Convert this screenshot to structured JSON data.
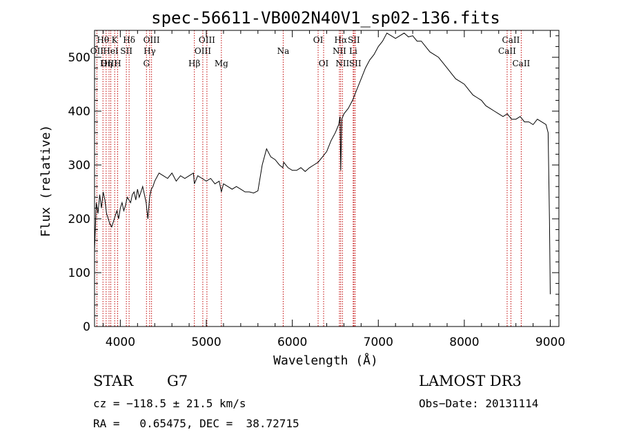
{
  "chart_data": {
    "type": "line",
    "title": "spec-56611-VB002N40V1_sp02-136.fits",
    "xlabel": "Wavelength (Å)",
    "ylabel": "Flux (relative)",
    "xlim": [
      3700,
      9100
    ],
    "ylim": [
      0,
      550
    ],
    "xticks": [
      4000,
      5000,
      6000,
      7000,
      8000,
      9000
    ],
    "yticks": [
      0,
      100,
      200,
      300,
      400,
      500
    ],
    "series": [
      {
        "name": "flux",
        "x": [
          3700,
          3720,
          3740,
          3760,
          3780,
          3800,
          3820,
          3840,
          3860,
          3880,
          3900,
          3920,
          3940,
          3960,
          3980,
          4000,
          4020,
          4040,
          4060,
          4080,
          4100,
          4120,
          4140,
          4160,
          4180,
          4200,
          4220,
          4240,
          4260,
          4280,
          4300,
          4320,
          4340,
          4360,
          4380,
          4400,
          4450,
          4500,
          4550,
          4600,
          4650,
          4700,
          4750,
          4800,
          4850,
          4861,
          4900,
          4950,
          5000,
          5050,
          5100,
          5150,
          5175,
          5200,
          5250,
          5300,
          5350,
          5400,
          5450,
          5500,
          5550,
          5600,
          5650,
          5700,
          5750,
          5800,
          5850,
          5890,
          5900,
          5950,
          6000,
          6050,
          6100,
          6150,
          6200,
          6250,
          6300,
          6350,
          6400,
          6450,
          6500,
          6540,
          6555,
          6563,
          6575,
          6600,
          6650,
          6700,
          6750,
          6800,
          6850,
          6900,
          6950,
          7000,
          7050,
          7100,
          7150,
          7200,
          7250,
          7300,
          7350,
          7400,
          7450,
          7500,
          7550,
          7600,
          7650,
          7700,
          7750,
          7800,
          7850,
          7900,
          7950,
          8000,
          8050,
          8100,
          8150,
          8200,
          8250,
          8300,
          8350,
          8400,
          8450,
          8500,
          8550,
          8600,
          8650,
          8700,
          8750,
          8800,
          8850,
          8900,
          8950,
          8975,
          8990,
          9000
        ],
        "values": [
          140,
          230,
          210,
          245,
          220,
          250,
          235,
          210,
          200,
          190,
          185,
          195,
          205,
          215,
          200,
          220,
          230,
          215,
          225,
          240,
          235,
          230,
          245,
          250,
          235,
          255,
          240,
          250,
          260,
          245,
          230,
          200,
          240,
          255,
          260,
          270,
          285,
          280,
          275,
          285,
          270,
          280,
          275,
          280,
          285,
          265,
          280,
          275,
          270,
          275,
          265,
          270,
          250,
          265,
          260,
          255,
          260,
          255,
          250,
          250,
          248,
          252,
          300,
          330,
          315,
          310,
          300,
          295,
          305,
          295,
          290,
          290,
          295,
          288,
          295,
          300,
          305,
          315,
          325,
          345,
          360,
          375,
          390,
          290,
          385,
          395,
          405,
          420,
          440,
          460,
          480,
          495,
          505,
          520,
          530,
          545,
          540,
          535,
          540,
          545,
          538,
          540,
          530,
          530,
          520,
          510,
          505,
          500,
          490,
          480,
          470,
          460,
          455,
          450,
          440,
          430,
          425,
          420,
          410,
          405,
          400,
          395,
          390,
          395,
          385,
          385,
          390,
          380,
          380,
          375,
          385,
          380,
          375,
          360,
          200,
          60
        ]
      }
    ],
    "lines": [
      {
        "label": "Hθ",
        "x": 3798,
        "row": 0
      },
      {
        "label": "OII",
        "x": 3727,
        "row": 1
      },
      {
        "label": "OIII",
        "x": 3869,
        "row": 2
      },
      {
        "label": "K",
        "x": 3934,
        "row": 0
      },
      {
        "label": "HeI",
        "x": 3889,
        "row": 1
      },
      {
        "label": "Hη",
        "x": 3835,
        "row": 2
      },
      {
        "label": "H",
        "x": 3969,
        "row": 2
      },
      {
        "label": "SII",
        "x": 4070,
        "row": 1
      },
      {
        "label": "Hδ",
        "x": 4102,
        "row": 0
      },
      {
        "label": "OIII",
        "x": 4363,
        "row": 0
      },
      {
        "label": "Hγ",
        "x": 4341,
        "row": 1
      },
      {
        "label": "G",
        "x": 4304,
        "row": 2
      },
      {
        "label": "Hβ",
        "x": 4861,
        "row": 2
      },
      {
        "label": "OIII",
        "x": 5007,
        "row": 0
      },
      {
        "label": "OIII",
        "x": 4959,
        "row": 1
      },
      {
        "label": "Mg",
        "x": 5175,
        "row": 2
      },
      {
        "label": "Na",
        "x": 5894,
        "row": 1
      },
      {
        "label": "OI",
        "x": 6300,
        "row": 0
      },
      {
        "label": "OI",
        "x": 6364,
        "row": 2
      },
      {
        "label": "Hα",
        "x": 6563,
        "row": 0
      },
      {
        "label": "NII",
        "x": 6548,
        "row": 1
      },
      {
        "label": "NII",
        "x": 6583,
        "row": 2
      },
      {
        "label": "SII",
        "x": 6716,
        "row": 0
      },
      {
        "label": "Li",
        "x": 6708,
        "row": 1
      },
      {
        "label": "SII",
        "x": 6731,
        "row": 2
      },
      {
        "label": "CaII",
        "x": 8542,
        "row": 0
      },
      {
        "label": "CaII",
        "x": 8498,
        "row": 1
      },
      {
        "label": "CaII",
        "x": 8662,
        "row": 2
      }
    ]
  },
  "info": {
    "class": "STAR",
    "subclass": "G7",
    "survey": "LAMOST DR3",
    "cz": "cz = −118.5 ± 21.5 km/s",
    "obs_date": "Obs−Date: 20131114",
    "coords": "RA =   0.65475, DEC =  38.72715"
  }
}
